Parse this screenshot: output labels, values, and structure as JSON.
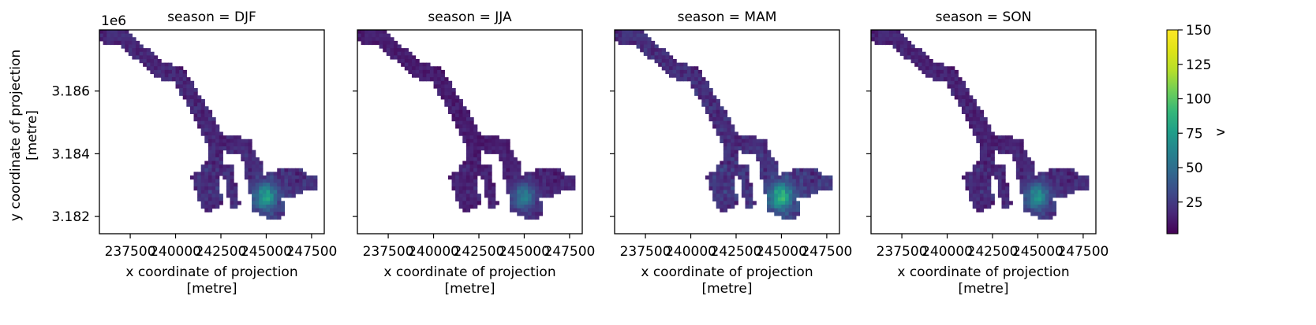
{
  "chart_data": {
    "type": "heatmap",
    "layout": "faceted",
    "x_label_line1": "x coordinate of projection",
    "x_label_line2": "[metre]",
    "y_label_line1": "y coordinate of projection",
    "y_label_line2": "[metre]",
    "y_offset_label": "1e6",
    "x_ticks": [
      237500,
      240000,
      242500,
      245000,
      247500
    ],
    "x_tick_labels": [
      "237500",
      "240000",
      "242500",
      "245000",
      "247500"
    ],
    "y_ticks": [
      3.182,
      3.184,
      3.186
    ],
    "y_tick_labels": [
      "3.182",
      "3.184",
      "3.186"
    ],
    "xlim": [
      235800,
      248200
    ],
    "ylim": [
      3.18145,
      3.18795
    ],
    "colorbar": {
      "label": "v",
      "colormap": "viridis",
      "range": [
        2,
        150
      ],
      "ticks": [
        25,
        50,
        75,
        100,
        125,
        150
      ],
      "tick_labels": [
        "25",
        "50",
        "75",
        "100",
        "125",
        "150"
      ]
    },
    "panels": [
      {
        "title": "season = DJF",
        "level": 1.0
      },
      {
        "title": "season = JJA",
        "level": 0.75
      },
      {
        "title": "season = MAM",
        "level": 1.15
      },
      {
        "title": "season = SON",
        "level": 0.9
      }
    ]
  }
}
